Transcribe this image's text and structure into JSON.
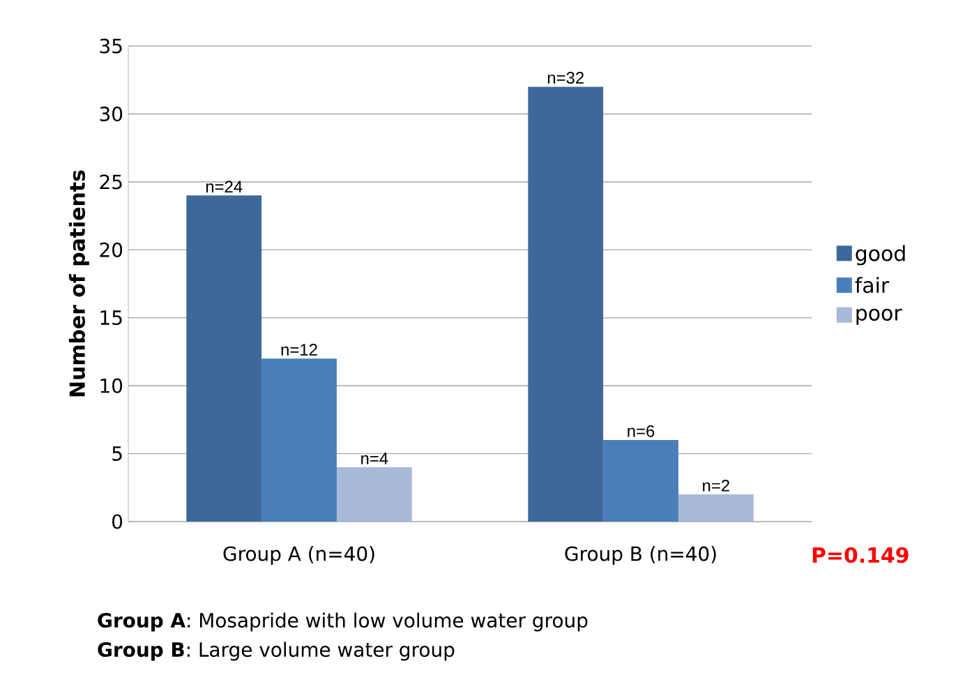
{
  "chart_data": {
    "type": "bar",
    "categories": [
      "Group A (n=40)",
      "Group B (n=40)"
    ],
    "ylabel": "Number of patients",
    "ylim": [
      0,
      35
    ],
    "yticks": [
      0,
      5,
      10,
      15,
      20,
      25,
      30,
      35
    ],
    "grid": "y",
    "legend": "right",
    "series": [
      {
        "name": "good",
        "color": "#3f6899",
        "values": [
          24,
          32
        ],
        "value_labels": [
          "n=24",
          "n=32"
        ]
      },
      {
        "name": "fair",
        "color": "#4a7ebb",
        "values": [
          12,
          6
        ],
        "value_labels": [
          "n=12",
          "n=6"
        ]
      },
      {
        "name": "poor",
        "color": "#a8b9d9",
        "values": [
          4,
          2
        ],
        "value_labels": [
          "n=4",
          "n=2"
        ]
      }
    ],
    "annotations": [
      "P=0.149",
      "**Group A**: Mosapride with low volume water group",
      "**Group B**: Large volume water group"
    ]
  }
}
